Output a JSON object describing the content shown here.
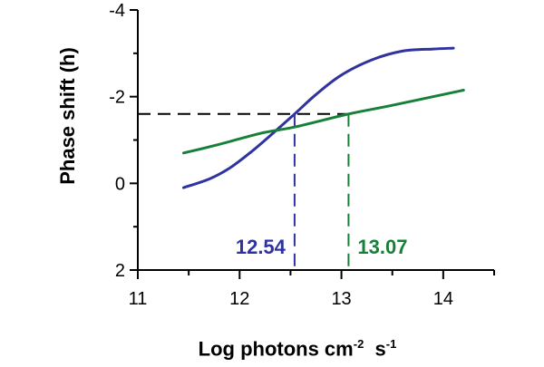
{
  "chart_data": {
    "type": "line",
    "title": "",
    "ylabel": "Phase shift (h)",
    "xlabel": {
      "base1": "Log photons cm",
      "exp1": "-2",
      "base2": "s",
      "exp2": "-1"
    },
    "xlim": [
      11,
      14.5
    ],
    "ylim": [
      2,
      -4
    ],
    "x_ticks": [
      11,
      12,
      13,
      14
    ],
    "x_tick_labels": [
      "11",
      "12",
      "13",
      "14"
    ],
    "y_ticks": [
      -4,
      -2,
      0,
      2
    ],
    "y_tick_labels": [
      "-4",
      "-2",
      "0",
      "2"
    ],
    "grid": false,
    "series": [
      {
        "color": "#2e33a0",
        "x": [
          11.45,
          11.7,
          11.9,
          12.1,
          12.3,
          12.54,
          12.75,
          13.0,
          13.3,
          13.6,
          13.9,
          14.1
        ],
        "y": [
          0.1,
          -0.1,
          -0.35,
          -0.7,
          -1.1,
          -1.6,
          -2.05,
          -2.5,
          -2.85,
          -3.05,
          -3.1,
          -3.12
        ]
      },
      {
        "color": "#168038",
        "x": [
          11.45,
          11.8,
          12.2,
          12.54,
          13.07,
          13.5,
          14.2
        ],
        "y": [
          -0.7,
          -0.9,
          -1.15,
          -1.3,
          -1.6,
          -1.8,
          -2.15
        ]
      }
    ],
    "reference_y": -1.6,
    "annotations": [
      {
        "text": "12.54",
        "x": 12.54,
        "color": "#2e33a0"
      },
      {
        "text": "13.07",
        "x": 13.07,
        "color": "#168038"
      }
    ]
  }
}
